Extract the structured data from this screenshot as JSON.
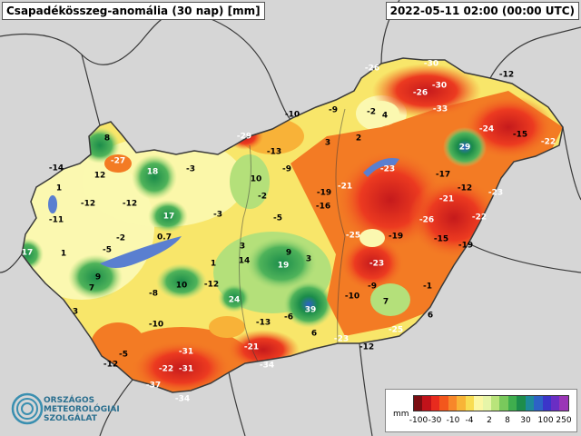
{
  "title": "Csapadékösszeg-anomália (30 nap) [mm]",
  "datetime": "2022-05-11 02:00 (00:00 UTC)",
  "logo": {
    "line1": "ORSZÁGOS",
    "line2": "METEOROLÓGIAI",
    "line3": "SZOLGÁLAT"
  },
  "legend": {
    "unit": "mm",
    "ticks": [
      "-100",
      "-30",
      "-10",
      "-4",
      "2",
      "8",
      "30",
      "100",
      "250"
    ],
    "colors": [
      "#7a0d12",
      "#c1121a",
      "#e82b1e",
      "#f3571c",
      "#f7872a",
      "#f8b437",
      "#f8dc52",
      "#fbf7a4",
      "#e6f5a8",
      "#b9e47b",
      "#79c95c",
      "#3fae4e",
      "#1d8d4c",
      "#1e8a9a",
      "#2d62c6",
      "#3b35c9",
      "#6a2ec4",
      "#9a35b6"
    ]
  },
  "map": {
    "colors": {
      "background": "#d6d6d6",
      "border": "#3a3a3a",
      "dry_deep": "#c51a1c",
      "dry": "#ec3a20",
      "dry_mid": "#f37b24",
      "dry_light": "#f8b238",
      "neutral": "#f8e66a",
      "pale": "#fbf8b0",
      "wet_light": "#b4e07a",
      "wet": "#4fb35a",
      "wet_deep": "#1b8c4a",
      "very_wet": "#2e62c6",
      "lake": "#5a7fd0"
    },
    "values": [
      {
        "v": "-26"
      },
      {
        "v": "-30"
      },
      {
        "v": "-12"
      },
      {
        "v": "-26"
      },
      {
        "v": "-30"
      },
      {
        "v": "-33"
      },
      {
        "v": "-10"
      },
      {
        "v": "-9"
      },
      {
        "v": "-2"
      },
      {
        "v": "4"
      },
      {
        "v": "-24"
      },
      {
        "v": "-15"
      },
      {
        "v": "-22"
      },
      {
        "v": "29"
      },
      {
        "v": "-29"
      },
      {
        "v": "3"
      },
      {
        "v": "2"
      },
      {
        "v": "-13"
      },
      {
        "v": "8"
      },
      {
        "v": "-27"
      },
      {
        "v": "-14"
      },
      {
        "v": "12"
      },
      {
        "v": "18"
      },
      {
        "v": "-3"
      },
      {
        "v": "-9"
      },
      {
        "v": "10"
      },
      {
        "v": "-23"
      },
      {
        "v": "-17"
      },
      {
        "v": "-21"
      },
      {
        "v": "-19"
      },
      {
        "v": "-2"
      },
      {
        "v": "-12"
      },
      {
        "v": "-23"
      },
      {
        "v": "1"
      },
      {
        "v": "-12"
      },
      {
        "v": "-12"
      },
      {
        "v": "-16"
      },
      {
        "v": "-21"
      },
      {
        "v": "-3"
      },
      {
        "v": "17"
      },
      {
        "v": "-11"
      },
      {
        "v": "-5"
      },
      {
        "v": "-26"
      },
      {
        "v": "-22"
      },
      {
        "v": "-2"
      },
      {
        "v": "-5"
      },
      {
        "v": "0.7"
      },
      {
        "v": "-25"
      },
      {
        "v": "-19"
      },
      {
        "v": "-15"
      },
      {
        "v": "-19"
      },
      {
        "v": "17"
      },
      {
        "v": "1"
      },
      {
        "v": "3"
      },
      {
        "v": "9"
      },
      {
        "v": "14"
      },
      {
        "v": "3"
      },
      {
        "v": "1"
      },
      {
        "v": "19"
      },
      {
        "v": "-23"
      },
      {
        "v": "9"
      },
      {
        "v": "-12"
      },
      {
        "v": "-9"
      },
      {
        "v": "-1"
      },
      {
        "v": "7"
      },
      {
        "v": "-8"
      },
      {
        "v": "10"
      },
      {
        "v": "24"
      },
      {
        "v": "-10"
      },
      {
        "v": "7"
      },
      {
        "v": "3"
      },
      {
        "v": "-13"
      },
      {
        "v": "-6"
      },
      {
        "v": "39"
      },
      {
        "v": "6"
      },
      {
        "v": "-10"
      },
      {
        "v": "-25"
      },
      {
        "v": "-23"
      },
      {
        "v": "6"
      },
      {
        "v": "-12"
      },
      {
        "v": "-21"
      },
      {
        "v": "-5"
      },
      {
        "v": "-31"
      },
      {
        "v": "-12"
      },
      {
        "v": "-22"
      },
      {
        "v": "-31"
      },
      {
        "v": "-34"
      },
      {
        "v": "-37"
      },
      {
        "v": "-34"
      }
    ]
  }
}
